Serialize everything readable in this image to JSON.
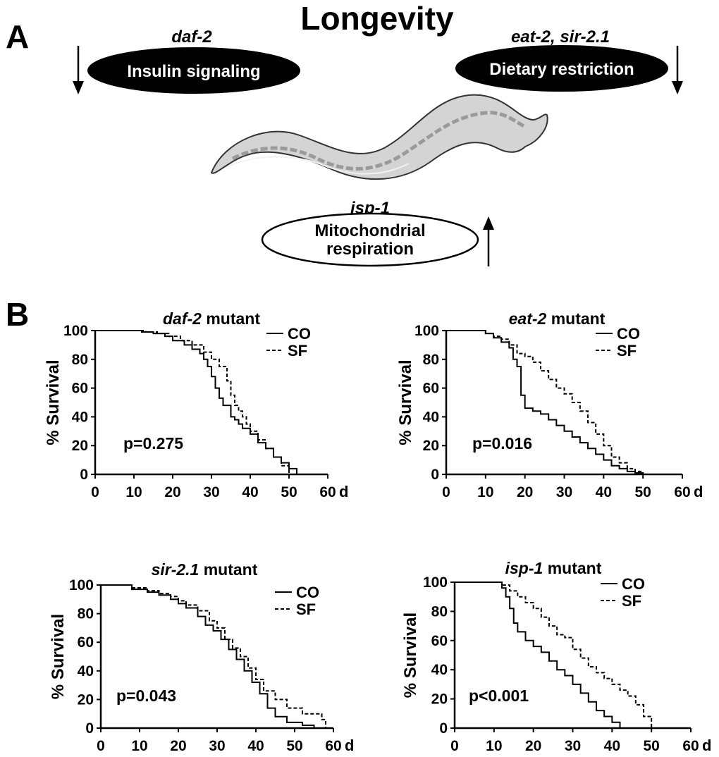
{
  "panel_a": {
    "panel_label": "A",
    "title": "Longevity",
    "pathways": [
      {
        "gene": "daf-2",
        "label": "Insulin signaling",
        "arrow": "down",
        "fill": "#000000"
      },
      {
        "gene": "eat-2, sir-2.1",
        "label": "Dietary restriction",
        "arrow": "down",
        "fill": "#000000"
      },
      {
        "gene": "isp-1",
        "label_lines": [
          "Mitochondrial",
          "respiration"
        ],
        "arrow": "up",
        "fill": "#ffffff"
      }
    ],
    "worm_icon": "c-elegans-worm-icon"
  },
  "panel_b": {
    "panel_label": "B"
  },
  "chart_data": [
    {
      "type": "line",
      "title_gene": "daf-2",
      "title_rest": " mutant",
      "xlabel": "d",
      "ylabel": "% Survival",
      "xlim": [
        0,
        60
      ],
      "ylim": [
        0,
        100
      ],
      "xticks": [
        0,
        10,
        20,
        30,
        40,
        50,
        60
      ],
      "yticks": [
        0,
        20,
        40,
        60,
        80,
        100
      ],
      "annotation": "p=0.275",
      "legend_position": "top-right",
      "series": [
        {
          "name": "CO",
          "style": "solid",
          "x": [
            0,
            10,
            12,
            15,
            18,
            20,
            23,
            25,
            27,
            28,
            29,
            30,
            31,
            32,
            33,
            34,
            35,
            36,
            37,
            38,
            40,
            42,
            44,
            46,
            48,
            50,
            52
          ],
          "y": [
            100,
            100,
            99,
            98,
            96,
            93,
            90,
            87,
            84,
            80,
            75,
            68,
            60,
            53,
            48,
            48,
            40,
            38,
            35,
            32,
            28,
            22,
            18,
            12,
            8,
            4,
            0
          ]
        },
        {
          "name": "SF",
          "style": "dashed",
          "x": [
            0,
            10,
            13,
            16,
            19,
            22,
            25,
            28,
            30,
            32,
            34,
            35,
            36,
            37,
            38,
            39,
            40,
            42,
            44,
            46,
            48,
            50
          ],
          "y": [
            100,
            100,
            99,
            98,
            96,
            93,
            90,
            85,
            80,
            75,
            65,
            55,
            48,
            44,
            40,
            35,
            30,
            24,
            18,
            12,
            6,
            0
          ]
        }
      ]
    },
    {
      "type": "line",
      "title_gene": "eat-2",
      "title_rest": " mutant",
      "xlabel": "d",
      "ylabel": "% Survival",
      "xlim": [
        0,
        60
      ],
      "ylim": [
        0,
        100
      ],
      "xticks": [
        0,
        10,
        20,
        30,
        40,
        50,
        60
      ],
      "yticks": [
        0,
        20,
        40,
        60,
        80,
        100
      ],
      "annotation": "p=0.016",
      "legend_position": "top-right",
      "series": [
        {
          "name": "CO",
          "style": "solid",
          "x": [
            0,
            8,
            10,
            12,
            14,
            16,
            17,
            18,
            19,
            20,
            22,
            24,
            26,
            28,
            30,
            32,
            34,
            36,
            38,
            40,
            42,
            44,
            46,
            48,
            50
          ],
          "y": [
            100,
            100,
            98,
            95,
            92,
            88,
            80,
            75,
            55,
            46,
            44,
            42,
            38,
            34,
            30,
            26,
            22,
            18,
            14,
            10,
            6,
            4,
            2,
            1,
            0
          ]
        },
        {
          "name": "SF",
          "style": "dashed",
          "x": [
            0,
            8,
            10,
            12,
            14,
            16,
            18,
            20,
            22,
            24,
            26,
            28,
            30,
            32,
            34,
            36,
            38,
            40,
            42,
            44,
            46,
            48,
            50
          ],
          "y": [
            100,
            100,
            98,
            96,
            94,
            90,
            84,
            82,
            78,
            72,
            66,
            60,
            56,
            50,
            44,
            36,
            28,
            20,
            12,
            8,
            4,
            2,
            0
          ]
        }
      ]
    },
    {
      "type": "line",
      "title_gene": "sir-2.1",
      "title_rest": " mutant",
      "xlabel": "d",
      "ylabel": "% Survival",
      "xlim": [
        0,
        60
      ],
      "ylim": [
        0,
        100
      ],
      "xticks": [
        0,
        10,
        20,
        30,
        40,
        50,
        60
      ],
      "yticks": [
        0,
        20,
        40,
        60,
        80,
        100
      ],
      "annotation": "p=0.043",
      "legend_position": "top-right",
      "series": [
        {
          "name": "CO",
          "style": "solid",
          "x": [
            0,
            5,
            8,
            12,
            15,
            18,
            20,
            22,
            25,
            27,
            29,
            31,
            33,
            35,
            37,
            39,
            41,
            43,
            45,
            48,
            52,
            55
          ],
          "y": [
            100,
            100,
            97,
            95,
            93,
            90,
            87,
            84,
            78,
            72,
            68,
            62,
            55,
            48,
            40,
            32,
            24,
            14,
            8,
            4,
            2,
            0
          ]
        },
        {
          "name": "SF",
          "style": "dashed",
          "x": [
            0,
            5,
            8,
            12,
            15,
            18,
            20,
            22,
            25,
            28,
            30,
            32,
            34,
            36,
            38,
            40,
            42,
            45,
            48,
            52,
            56,
            57,
            58
          ],
          "y": [
            100,
            100,
            98,
            96,
            94,
            92,
            89,
            86,
            82,
            75,
            70,
            62,
            56,
            50,
            42,
            34,
            26,
            20,
            14,
            10,
            10,
            6,
            0
          ]
        }
      ]
    },
    {
      "type": "line",
      "title_gene": "isp-1",
      "title_rest": " mutant",
      "xlabel": "d",
      "ylabel": "% Survival",
      "xlim": [
        0,
        60
      ],
      "ylim": [
        0,
        100
      ],
      "xticks": [
        0,
        10,
        20,
        30,
        40,
        50,
        60
      ],
      "yticks": [
        0,
        20,
        40,
        60,
        80,
        100
      ],
      "annotation": "p<0.001",
      "legend_position": "top-right",
      "series": [
        {
          "name": "CO",
          "style": "solid",
          "x": [
            0,
            10,
            12,
            13,
            14,
            15,
            16,
            18,
            20,
            22,
            24,
            26,
            28,
            30,
            32,
            34,
            36,
            38,
            40,
            42
          ],
          "y": [
            100,
            100,
            96,
            90,
            82,
            72,
            66,
            60,
            56,
            52,
            46,
            40,
            36,
            30,
            24,
            18,
            12,
            8,
            4,
            0
          ]
        },
        {
          "name": "SF",
          "style": "dashed",
          "x": [
            0,
            10,
            12,
            14,
            16,
            18,
            20,
            22,
            24,
            26,
            28,
            30,
            32,
            34,
            36,
            38,
            40,
            42,
            44,
            46,
            48,
            50
          ],
          "y": [
            100,
            100,
            98,
            94,
            90,
            86,
            82,
            76,
            70,
            64,
            62,
            54,
            48,
            42,
            38,
            34,
            30,
            26,
            22,
            16,
            8,
            0
          ]
        }
      ]
    }
  ]
}
